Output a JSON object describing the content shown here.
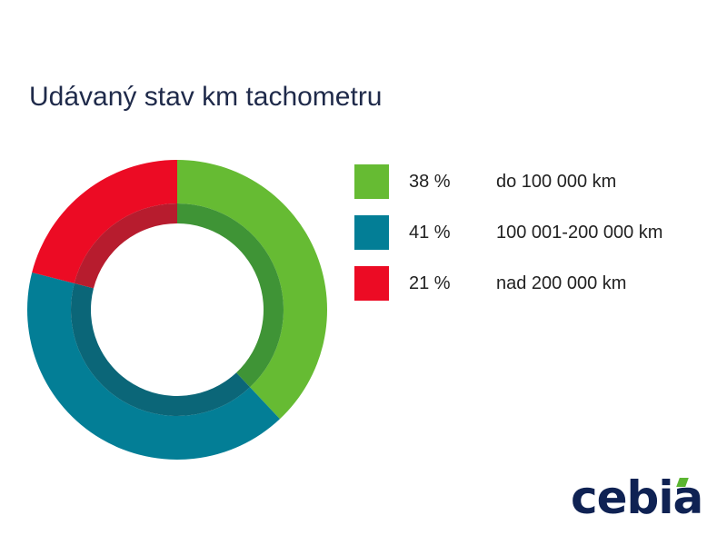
{
  "title": "Udávaný stav km tachometru",
  "chart_data": {
    "type": "pie",
    "variant": "donut",
    "title": "Udávaný stav km tachometru",
    "slices": [
      {
        "label": "do 100 000 km",
        "value": 38,
        "display": "38 %",
        "color": "#66bb33",
        "inner_color": "#3f9436"
      },
      {
        "label": "100 001-200 000 km",
        "value": 41,
        "display": "41 %",
        "color": "#037e96",
        "inner_color": "#0b6678"
      },
      {
        "label": "nad 200 000 km",
        "value": 21,
        "display": "21 %",
        "color": "#ec0b24",
        "inner_color": "#b71c2e"
      }
    ],
    "legend_position": "right",
    "start_angle_deg": 0,
    "direction": "clockwise"
  },
  "legend": [
    {
      "value": "38 %",
      "label": "do 100 000 km",
      "color": "#66bb33"
    },
    {
      "value": "41 %",
      "label": "100 001-200 000 km",
      "color": "#037e96"
    },
    {
      "value": "21 %",
      "label": "nad 200 000 km",
      "color": "#ec0b24"
    }
  ],
  "logo": {
    "text": "cebia",
    "text_color": "#0f2253",
    "accent_color": "#5bb531"
  }
}
